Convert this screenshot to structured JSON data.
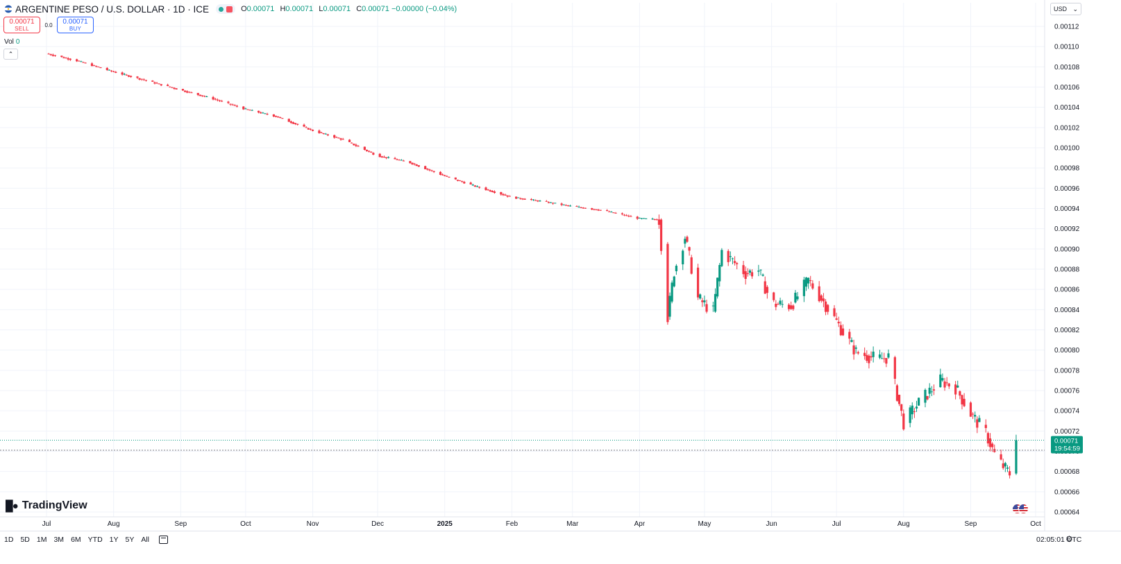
{
  "header": {
    "title": "ARGENTINE PESO / U.S. DOLLAR · 1D · ICE",
    "ohlc": [
      {
        "key": "O",
        "value": "0.00071"
      },
      {
        "key": "H",
        "value": "0.00071"
      },
      {
        "key": "L",
        "value": "0.00071"
      },
      {
        "key": "C",
        "value": "0.00071 −0.00000 (−0.04%)"
      }
    ]
  },
  "trade": {
    "sell_price": "0.00071",
    "sell_label": "SELL",
    "spread": "0.0",
    "buy_price": "0.00071",
    "buy_label": "BUY"
  },
  "volume": {
    "label": "Vol",
    "value": "0"
  },
  "currency": {
    "label": "USD"
  },
  "logo": {
    "text": "TradingView"
  },
  "price_tag": {
    "price": "0.00071",
    "countdown": "19:54:59"
  },
  "bottom": {
    "ranges": [
      "1D",
      "5D",
      "1M",
      "3M",
      "6M",
      "YTD",
      "1Y",
      "5Y",
      "All"
    ],
    "clock": "02:05:01 UTC"
  },
  "colors": {
    "up": "#089981",
    "down": "#f23645",
    "grid": "#f0f3fa",
    "axis_text": "#131722"
  },
  "chart_data": {
    "type": "line",
    "style": "candlestick",
    "title": "ARGENTINE PESO / U.S. DOLLAR · 1D · ICE",
    "x_labels": [
      "Jul",
      "Aug",
      "Sep",
      "Oct",
      "Nov",
      "Dec",
      "2025",
      "Feb",
      "Mar",
      "Apr",
      "May",
      "Jun",
      "Jul",
      "Aug",
      "Sep",
      "Oct"
    ],
    "x_label_dates": [
      "2024-07-01",
      "2024-08-01",
      "2024-09-01",
      "2024-10-01",
      "2024-11-01",
      "2024-12-01",
      "2025-01-01",
      "2025-02-01",
      "2025-03-01",
      "2025-04-01",
      "2025-05-01",
      "2025-06-01",
      "2025-07-01",
      "2025-08-01",
      "2025-09-01",
      "2025-10-01"
    ],
    "y_ticks": [
      "0.00112",
      "0.00110",
      "0.00108",
      "0.00106",
      "0.00104",
      "0.00102",
      "0.00100",
      "0.00098",
      "0.00096",
      "0.00094",
      "0.00092",
      "0.00090",
      "0.00088",
      "0.00086",
      "0.00084",
      "0.00082",
      "0.00080",
      "0.00078",
      "0.00076",
      "0.00074",
      "0.00072",
      "0.00070",
      "0.00068",
      "0.00066",
      "0.00064"
    ],
    "ylim": [
      0.000636,
      0.001134
    ],
    "grid": true,
    "legend": "none",
    "price_line": 0.000711,
    "prev_close_line": 0.000701,
    "series": [
      {
        "points": [
          [
            "2024-07-01",
            0.001093
          ],
          [
            "2024-07-15",
            0.001086
          ],
          [
            "2024-08-01",
            0.001075
          ],
          [
            "2024-08-15",
            0.001067
          ],
          [
            "2024-09-01",
            0.001057
          ],
          [
            "2024-09-15",
            0.001049
          ],
          [
            "2024-10-01",
            0.001038
          ],
          [
            "2024-10-15",
            0.001031
          ],
          [
            "2024-11-01",
            0.001017
          ],
          [
            "2024-11-15",
            0.001008
          ],
          [
            "2024-12-01",
            0.000992
          ],
          [
            "2024-12-15",
            0.000986
          ],
          [
            "2025-01-01",
            0.000972
          ],
          [
            "2025-01-15",
            0.000962
          ],
          [
            "2025-02-01",
            0.000951
          ],
          [
            "2025-02-15",
            0.000947
          ],
          [
            "2025-03-01",
            0.000942
          ],
          [
            "2025-03-15",
            0.000938
          ],
          [
            "2025-04-01",
            0.00093
          ],
          [
            "2025-04-10",
            0.000929
          ],
          [
            "2025-04-14",
            0.000833
          ],
          [
            "2025-04-17",
            0.000878
          ],
          [
            "2025-04-22",
            0.000912
          ],
          [
            "2025-04-28",
            0.000851
          ],
          [
            "2025-05-05",
            0.000838
          ],
          [
            "2025-05-09",
            0.000898
          ],
          [
            "2025-05-20",
            0.000876
          ],
          [
            "2025-05-26",
            0.000879
          ],
          [
            "2025-06-01",
            0.000846
          ],
          [
            "2025-06-10",
            0.000844
          ],
          [
            "2025-06-18",
            0.000869
          ],
          [
            "2025-06-25",
            0.000848
          ],
          [
            "2025-07-01",
            0.000828
          ],
          [
            "2025-07-10",
            0.000798
          ],
          [
            "2025-07-20",
            0.000791
          ],
          [
            "2025-07-25",
            0.000793
          ],
          [
            "2025-08-01",
            0.000728
          ],
          [
            "2025-08-08",
            0.000748
          ],
          [
            "2025-08-18",
            0.00077
          ],
          [
            "2025-08-25",
            0.000763
          ],
          [
            "2025-09-01",
            0.000737
          ],
          [
            "2025-09-08",
            0.000718
          ],
          [
            "2025-09-12",
            0.000697
          ],
          [
            "2025-09-16",
            0.000685
          ],
          [
            "2025-09-19",
            0.000678
          ],
          [
            "2025-09-22",
            0.000711
          ]
        ]
      }
    ]
  }
}
